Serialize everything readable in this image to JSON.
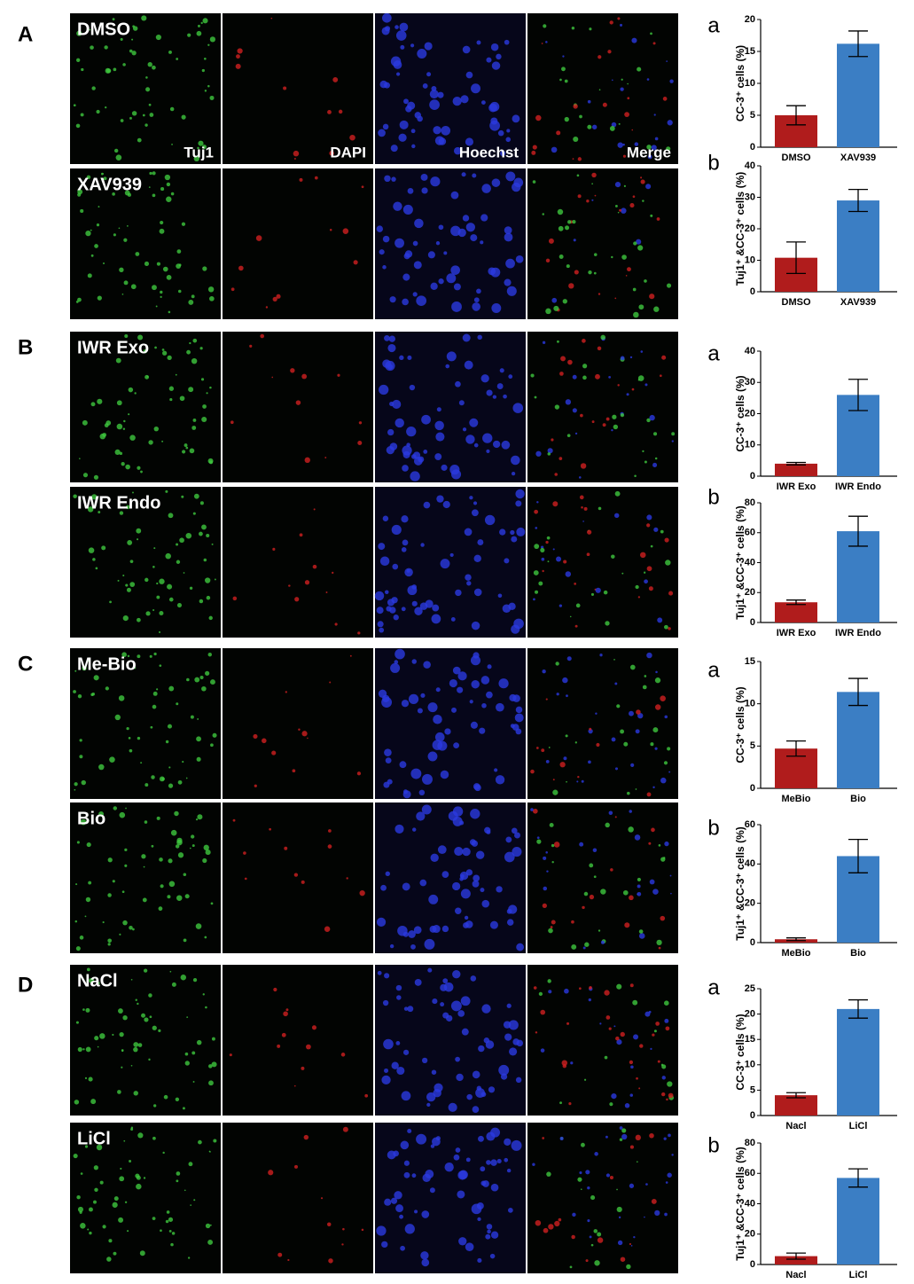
{
  "panels": [
    {
      "letter": "A",
      "rows": [
        {
          "condition": "DMSO"
        },
        {
          "condition": "XAV939"
        }
      ],
      "channel_labels": [
        "Tuj1",
        "DAPI",
        "Hoechst",
        "Merge"
      ]
    },
    {
      "letter": "B",
      "rows": [
        {
          "condition": "IWR Exo"
        },
        {
          "condition": "IWR Endo"
        }
      ]
    },
    {
      "letter": "C",
      "rows": [
        {
          "condition": "Me-Bio"
        },
        {
          "condition": "Bio"
        }
      ]
    },
    {
      "letter": "D",
      "rows": [
        {
          "condition": "NaCl"
        },
        {
          "condition": "LiCl"
        }
      ]
    }
  ],
  "chart_data": [
    {
      "type": "bar",
      "panel_label": "a",
      "ylabel": "CC-3⁺ cells (%)",
      "categories": [
        "DMSO",
        "XAV939"
      ],
      "values": [
        5.0,
        16.2
      ],
      "errors": [
        1.5,
        2.0
      ],
      "colors": [
        "#b01c1c",
        "#3b7ec4"
      ],
      "ylim": [
        0,
        20
      ],
      "yticks": [
        0,
        5,
        10,
        15,
        20
      ]
    },
    {
      "type": "bar",
      "panel_label": "b",
      "ylabel": "Tuj1⁺ &CC-3⁺ cells (%)",
      "categories": [
        "DMSO",
        "XAV939"
      ],
      "values": [
        10.8,
        29
      ],
      "errors": [
        5,
        3.5
      ],
      "colors": [
        "#b01c1c",
        "#3b7ec4"
      ],
      "ylim": [
        0,
        40
      ],
      "yticks": [
        0,
        10,
        20,
        30,
        40
      ]
    },
    {
      "type": "bar",
      "panel_label": "a",
      "ylabel": "CC-3⁺ cells (%)",
      "categories": [
        "IWR Exo",
        "IWR Endo"
      ],
      "values": [
        4,
        26
      ],
      "errors": [
        0.4,
        5
      ],
      "colors": [
        "#b01c1c",
        "#3b7ec4"
      ],
      "ylim": [
        0,
        40
      ],
      "yticks": [
        0,
        10,
        20,
        30,
        40
      ]
    },
    {
      "type": "bar",
      "panel_label": "b",
      "ylabel": "Tuj1⁺ &CC-3⁺ cells (%)",
      "categories": [
        "IWR Exo",
        "IWR Endo"
      ],
      "values": [
        13.5,
        61
      ],
      "errors": [
        1.5,
        10
      ],
      "colors": [
        "#b01c1c",
        "#3b7ec4"
      ],
      "ylim": [
        0,
        80
      ],
      "yticks": [
        0,
        20,
        40,
        60,
        80
      ]
    },
    {
      "type": "bar",
      "panel_label": "a",
      "ylabel": "CC-3⁺ cells (%)",
      "categories": [
        "MeBio",
        "Bio"
      ],
      "values": [
        4.7,
        11.4
      ],
      "errors": [
        0.9,
        1.6
      ],
      "colors": [
        "#b01c1c",
        "#3b7ec4"
      ],
      "ylim": [
        0,
        15
      ],
      "yticks": [
        0,
        5,
        10,
        15
      ]
    },
    {
      "type": "bar",
      "panel_label": "b",
      "ylabel": "Tuj1⁺ &CC-3⁺ cells (%)",
      "categories": [
        "MeBio",
        "Bio"
      ],
      "values": [
        1.7,
        44
      ],
      "errors": [
        0.7,
        8.5
      ],
      "colors": [
        "#b01c1c",
        "#3b7ec4"
      ],
      "ylim": [
        0,
        60
      ],
      "yticks": [
        0,
        20,
        40,
        60
      ]
    },
    {
      "type": "bar",
      "panel_label": "a",
      "ylabel": "CC-3⁺ cells (%)",
      "categories": [
        "Nacl",
        "LiCl"
      ],
      "values": [
        4,
        21
      ],
      "errors": [
        0.5,
        1.8
      ],
      "colors": [
        "#b01c1c",
        "#3b7ec4"
      ],
      "ylim": [
        0,
        25
      ],
      "yticks": [
        0,
        5,
        10,
        15,
        20,
        25
      ]
    },
    {
      "type": "bar",
      "panel_label": "b",
      "ylabel": "Tuj1⁺ &CC-3⁺ cells (%)",
      "categories": [
        "Nacl",
        "LiCl"
      ],
      "values": [
        5.5,
        57
      ],
      "errors": [
        2,
        6
      ],
      "colors": [
        "#b01c1c",
        "#3b7ec4"
      ],
      "ylim": [
        0,
        80
      ],
      "yticks": [
        0,
        20,
        40,
        60,
        80
      ]
    }
  ]
}
